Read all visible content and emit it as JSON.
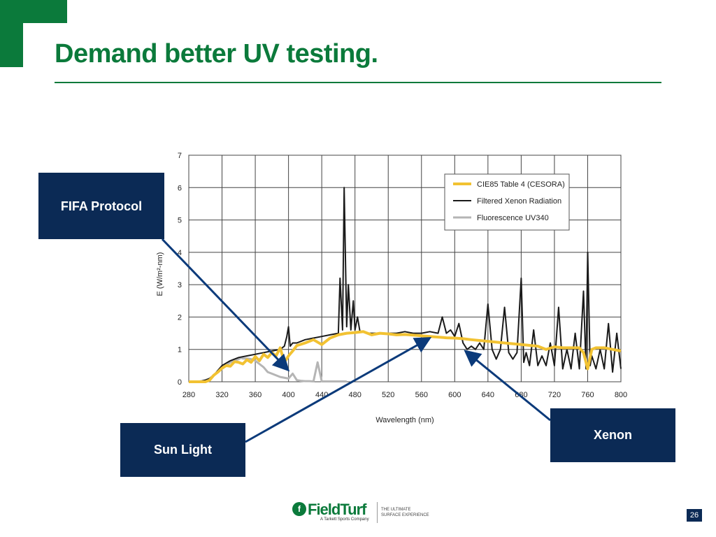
{
  "slide": {
    "title": "Demand better UV testing.",
    "page_number": "26",
    "brand_color": "#0b7a3b",
    "callout_color": "#0b2a55"
  },
  "callouts": {
    "fifa": "FIFA Protocol",
    "sun": "Sun Light",
    "xenon": "Xenon"
  },
  "footer": {
    "logo_name": "FieldTurf",
    "logo_sub": "A Tarkett Sports Company",
    "tagline": "THE ULTIMATE SURFACE EXPERIENCE"
  },
  "chart_data": {
    "type": "line",
    "xlabel": "Wavelength (nm)",
    "ylabel": "E (W/m²-nm)",
    "xlim": [
      280,
      800
    ],
    "ylim": [
      0,
      7
    ],
    "xticks": [
      280,
      320,
      360,
      400,
      440,
      480,
      520,
      560,
      600,
      640,
      680,
      720,
      760,
      800
    ],
    "yticks": [
      0,
      1,
      2,
      3,
      4,
      5,
      6,
      7
    ],
    "grid": true,
    "legend_position": "top-right",
    "series": [
      {
        "name": "CIE85 Table 4 (CESORA)",
        "color": "#f2c232",
        "x": [
          280,
          290,
          300,
          305,
          310,
          315,
          320,
          325,
          330,
          335,
          340,
          345,
          350,
          355,
          360,
          365,
          370,
          375,
          380,
          385,
          390,
          395,
          400,
          405,
          410,
          420,
          430,
          440,
          450,
          460,
          470,
          480,
          490,
          500,
          510,
          520,
          530,
          540,
          550,
          560,
          570,
          580,
          590,
          600,
          610,
          620,
          640,
          660,
          680,
          700,
          710,
          720,
          730,
          740,
          750,
          755,
          760,
          765,
          770,
          780,
          790,
          800
        ],
        "y": [
          0,
          0,
          0,
          0.05,
          0.2,
          0.3,
          0.42,
          0.5,
          0.48,
          0.62,
          0.6,
          0.55,
          0.68,
          0.6,
          0.78,
          0.65,
          0.85,
          0.75,
          0.9,
          0.8,
          1.05,
          0.6,
          0.8,
          0.95,
          1.12,
          1.2,
          1.3,
          1.15,
          1.35,
          1.45,
          1.5,
          1.52,
          1.55,
          1.45,
          1.5,
          1.48,
          1.45,
          1.46,
          1.44,
          1.42,
          1.4,
          1.38,
          1.36,
          1.35,
          1.33,
          1.3,
          1.25,
          1.2,
          1.15,
          1.1,
          1.0,
          1.08,
          1.05,
          1.05,
          1.05,
          0.9,
          0.4,
          1.0,
          1.05,
          1.05,
          1.0,
          0.95
        ]
      },
      {
        "name": "Filtered Xenon Radiation",
        "color": "#1a1a1a",
        "x": [
          280,
          290,
          295,
          300,
          305,
          310,
          315,
          320,
          330,
          340,
          350,
          360,
          370,
          380,
          390,
          395,
          398,
          400,
          402,
          405,
          410,
          420,
          430,
          440,
          450,
          460,
          462,
          465,
          467,
          470,
          472,
          475,
          478,
          480,
          483,
          486,
          490,
          495,
          500,
          510,
          520,
          530,
          540,
          550,
          560,
          570,
          580,
          585,
          590,
          595,
          600,
          605,
          610,
          615,
          620,
          625,
          630,
          635,
          640,
          645,
          650,
          655,
          660,
          665,
          670,
          675,
          680,
          683,
          686,
          690,
          695,
          700,
          705,
          710,
          715,
          720,
          725,
          730,
          735,
          740,
          745,
          750,
          755,
          758,
          760,
          763,
          765,
          770,
          775,
          780,
          785,
          790,
          795,
          800
        ],
        "y": [
          0,
          0,
          0.02,
          0.05,
          0.1,
          0.2,
          0.35,
          0.5,
          0.65,
          0.75,
          0.8,
          0.85,
          0.9,
          0.95,
          1.0,
          1.1,
          1.4,
          1.7,
          1.1,
          1.2,
          1.2,
          1.3,
          1.35,
          1.4,
          1.45,
          1.5,
          3.2,
          1.6,
          6.0,
          1.7,
          3.0,
          1.6,
          2.5,
          1.6,
          2.0,
          1.55,
          1.55,
          1.5,
          1.5,
          1.5,
          1.5,
          1.5,
          1.55,
          1.5,
          1.5,
          1.55,
          1.5,
          2.0,
          1.5,
          1.6,
          1.4,
          1.8,
          1.2,
          1.0,
          1.1,
          1.0,
          1.2,
          1.0,
          2.4,
          1.0,
          0.7,
          1.0,
          2.3,
          0.9,
          0.7,
          0.9,
          3.2,
          0.6,
          0.9,
          0.5,
          1.6,
          0.5,
          0.8,
          0.5,
          1.2,
          0.5,
          2.3,
          0.4,
          1.0,
          0.4,
          1.5,
          0.4,
          2.8,
          0.4,
          4.0,
          0.5,
          0.8,
          0.4,
          1.0,
          0.4,
          1.8,
          0.3,
          1.5,
          0.4
        ]
      },
      {
        "name": "Fluorescence UV340",
        "color": "#b5b5b5",
        "x": [
          280,
          290,
          295,
          300,
          305,
          310,
          315,
          320,
          325,
          330,
          335,
          340,
          343,
          345,
          350,
          355,
          360,
          365,
          370,
          375,
          380,
          390,
          400,
          405,
          410,
          415,
          420,
          425,
          430,
          435,
          440,
          445,
          450,
          460,
          470
        ],
        "y": [
          0,
          0,
          0.02,
          0.05,
          0.1,
          0.2,
          0.3,
          0.4,
          0.5,
          0.6,
          0.65,
          0.7,
          0.75,
          0.72,
          0.72,
          0.7,
          0.65,
          0.55,
          0.45,
          0.3,
          0.25,
          0.15,
          0.1,
          0.25,
          0.05,
          0.03,
          0.02,
          0.02,
          0.01,
          0.6,
          0.01,
          0.01,
          0.01,
          0.01,
          0.01
        ]
      }
    ]
  }
}
